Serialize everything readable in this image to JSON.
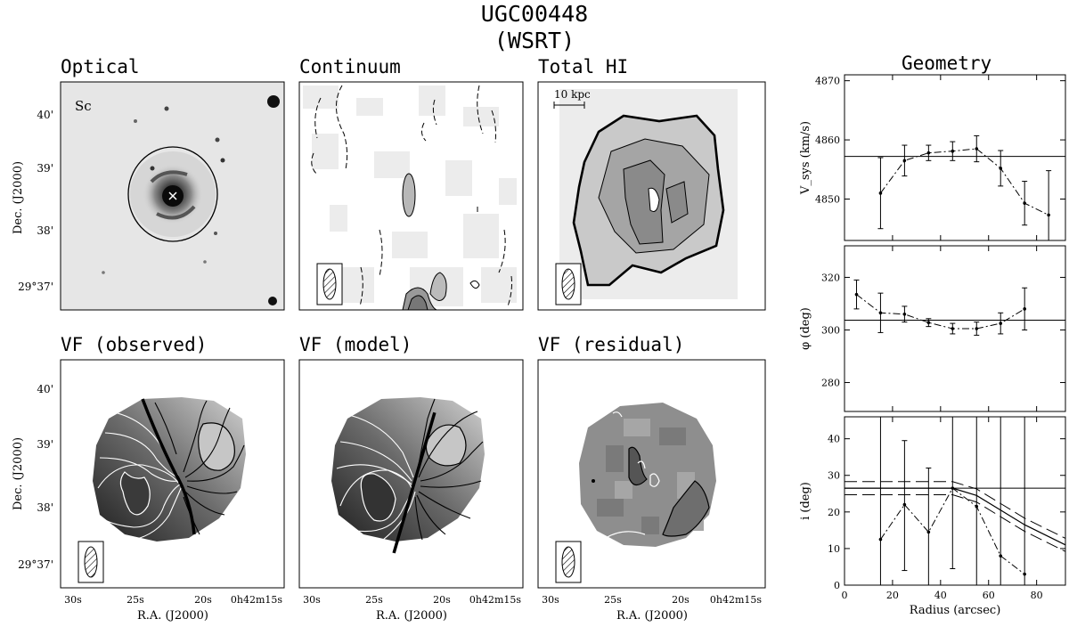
{
  "figure": {
    "title_line1": "UGC00448",
    "title_line2": "(WSRT)"
  },
  "panels": {
    "optical": {
      "title": "Optical",
      "morph_label": "Sc"
    },
    "continuum": {
      "title": "Continuum"
    },
    "total_hi": {
      "title": "Total HI",
      "scale_bar_label": "10 kpc"
    },
    "vf_observed": {
      "title": "VF (observed)"
    },
    "vf_model": {
      "title": "VF (model)"
    },
    "vf_residual": {
      "title": "VF (residual)"
    },
    "geometry": {
      "title": "Geometry"
    }
  },
  "sky_axes": {
    "ylabel": "Dec. (J2000)",
    "xlabel": "R.A. (J2000)",
    "dec_ticks": [
      "40'",
      "39'",
      "38'",
      "29°37'"
    ],
    "ra_ticks": [
      "30s",
      "25s",
      "20s",
      "0h42m15s"
    ]
  },
  "colors": {
    "ink": "#000000",
    "background": "#ffffff",
    "contour_white": "#ffffff"
  },
  "chart_data": [
    {
      "type": "line",
      "name": "vsys",
      "ylabel": "V_sys (km/s)",
      "ylim": [
        4843,
        4871
      ],
      "yticks": [
        4850,
        4860,
        4870
      ],
      "x": [
        15,
        25,
        35,
        45,
        55,
        65,
        75,
        85
      ],
      "values": [
        4851,
        4856.5,
        4857.8,
        4858.1,
        4858.5,
        4855.2,
        4849.3,
        4847.3
      ],
      "errors": [
        6,
        2.6,
        1.3,
        1.6,
        2.2,
        3.0,
        3.7,
        7.5
      ],
      "reference": 4857.2
    },
    {
      "type": "line",
      "name": "pa",
      "ylabel": "φ (deg)",
      "ylim": [
        269,
        332
      ],
      "yticks": [
        280,
        300,
        320
      ],
      "x": [
        5,
        15,
        25,
        35,
        45,
        55,
        65,
        75
      ],
      "values": [
        313.5,
        306.5,
        306,
        302.8,
        300.5,
        300.5,
        302.5,
        308
      ],
      "errors": [
        5.5,
        7.5,
        3,
        1.5,
        2,
        2.5,
        4,
        8
      ],
      "reference": 303.7
    },
    {
      "type": "line",
      "name": "inclination",
      "ylabel": "i (deg)",
      "xlabel": "Radius (arcsec)",
      "xlim": [
        0,
        92
      ],
      "xticks": [
        0,
        20,
        40,
        60,
        80
      ],
      "ylim": [
        0,
        46
      ],
      "yticks": [
        0,
        10,
        20,
        30,
        40
      ],
      "x": [
        15,
        25,
        35,
        45,
        55,
        65,
        75
      ],
      "values": [
        12.5,
        22,
        14.5,
        26.5,
        21.5,
        8,
        3
      ],
      "err_low": [
        12.5,
        18,
        14.5,
        22,
        21.5,
        8,
        3
      ],
      "err_high": [
        46,
        17.5,
        17.5,
        19.5,
        24.5,
        38,
        43
      ],
      "reference": 26.5,
      "model": {
        "x": [
          0,
          45,
          55,
          65,
          75,
          92
        ],
        "values": [
          26.5,
          26.5,
          24.5,
          20.5,
          16.5,
          11
        ]
      }
    }
  ]
}
